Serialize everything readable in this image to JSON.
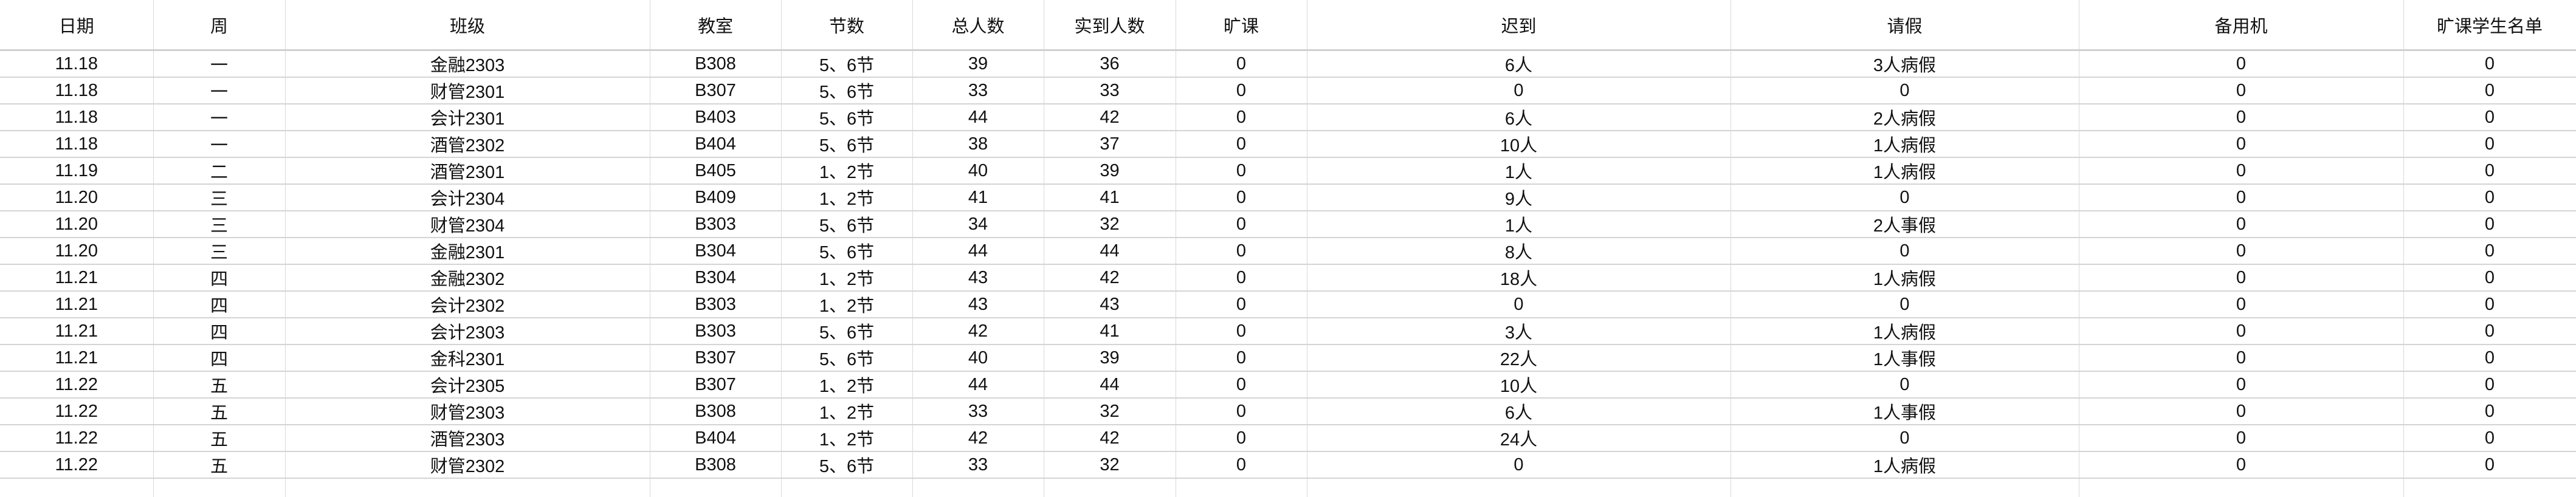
{
  "columns": [
    "日期",
    "周",
    "班级",
    "教室",
    "节数",
    "总人数",
    "实到人数",
    "旷课",
    "迟到",
    "请假",
    "备用机",
    "旷课学生名单"
  ],
  "rows": [
    [
      "11.18",
      "一",
      "金融2303",
      "B308",
      "5、6节",
      "39",
      "36",
      "0",
      "6人",
      "3人病假",
      "0",
      "0"
    ],
    [
      "11.18",
      "一",
      "财管2301",
      "B307",
      "5、6节",
      "33",
      "33",
      "0",
      "0",
      "0",
      "0",
      "0"
    ],
    [
      "11.18",
      "一",
      "会计2301",
      "B403",
      "5、6节",
      "44",
      "42",
      "0",
      "6人",
      "2人病假",
      "0",
      "0"
    ],
    [
      "11.18",
      "一",
      "酒管2302",
      "B404",
      "5、6节",
      "38",
      "37",
      "0",
      "10人",
      "1人病假",
      "0",
      "0"
    ],
    [
      "11.19",
      "二",
      "酒管2301",
      "B405",
      "1、2节",
      "40",
      "39",
      "0",
      "1人",
      "1人病假",
      "0",
      "0"
    ],
    [
      "11.20",
      "三",
      "会计2304",
      "B409",
      "1、2节",
      "41",
      "41",
      "0",
      "9人",
      "0",
      "0",
      "0"
    ],
    [
      "11.20",
      "三",
      "财管2304",
      "B303",
      "5、6节",
      "34",
      "32",
      "0",
      "1人",
      "2人事假",
      "0",
      "0"
    ],
    [
      "11.20",
      "三",
      "金融2301",
      "B304",
      "5、6节",
      "44",
      "44",
      "0",
      "8人",
      "0",
      "0",
      "0"
    ],
    [
      "11.21",
      "四",
      "金融2302",
      "B304",
      "1、2节",
      "43",
      "42",
      "0",
      "18人",
      "1人病假",
      "0",
      "0"
    ],
    [
      "11.21",
      "四",
      "会计2302",
      "B303",
      "1、2节",
      "43",
      "43",
      "0",
      "0",
      "0",
      "0",
      "0"
    ],
    [
      "11.21",
      "四",
      "会计2303",
      "B303",
      "5、6节",
      "42",
      "41",
      "0",
      "3人",
      "1人病假",
      "0",
      "0"
    ],
    [
      "11.21",
      "四",
      "金科2301",
      "B307",
      "5、6节",
      "40",
      "39",
      "0",
      "22人",
      "1人事假",
      "0",
      "0"
    ],
    [
      "11.22",
      "五",
      "会计2305",
      "B307",
      "1、2节",
      "44",
      "44",
      "0",
      "10人",
      "0",
      "0",
      "0"
    ],
    [
      "11.22",
      "五",
      "财管2303",
      "B308",
      "1、2节",
      "33",
      "32",
      "0",
      "6人",
      "1人事假",
      "0",
      "0"
    ],
    [
      "11.22",
      "五",
      "酒管2303",
      "B404",
      "1、2节",
      "42",
      "42",
      "0",
      "24人",
      "0",
      "0",
      "0"
    ],
    [
      "11.22",
      "五",
      "财管2302",
      "B308",
      "5、6节",
      "33",
      "32",
      "0",
      "0",
      "1人病假",
      "0",
      "0"
    ]
  ]
}
